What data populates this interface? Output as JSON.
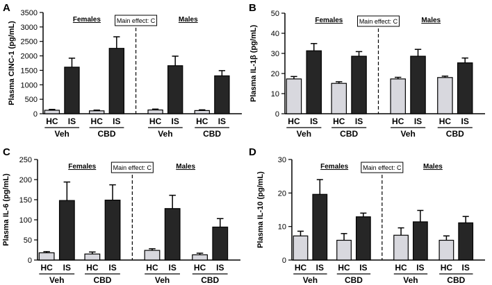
{
  "chart_data": [
    {
      "type": "bar",
      "panel": "A",
      "ylabel": "Plasma CINC-1 (pg/mL)",
      "ylim": [
        0,
        3500
      ],
      "yticks": [
        0,
        500,
        1000,
        1500,
        2000,
        2500,
        3000,
        3500
      ],
      "categories": [
        "HC",
        "IS",
        "HC",
        "IS",
        "HC",
        "IS",
        "HC",
        "IS"
      ],
      "groups": [
        "Veh",
        "CBD",
        "Veh",
        "CBD"
      ],
      "sexes": [
        "Females",
        "Males"
      ],
      "annotation": "Main effect: C",
      "colors": [
        "#d8d8de",
        "#262626",
        "#d8d8de",
        "#262626",
        "#d8d8de",
        "#262626",
        "#d8d8de",
        "#262626"
      ],
      "values": [
        120,
        1610,
        100,
        2260,
        130,
        1660,
        110,
        1310
      ],
      "errors": [
        30,
        310,
        25,
        400,
        30,
        330,
        25,
        180
      ]
    },
    {
      "type": "bar",
      "panel": "B",
      "ylabel": "Plasma IL-1β (pg/mL)",
      "ylim": [
        0,
        50
      ],
      "yticks": [
        0,
        10,
        20,
        30,
        40,
        50
      ],
      "categories": [
        "HC",
        "IS",
        "HC",
        "IS",
        "HC",
        "IS",
        "HC",
        "IS"
      ],
      "groups": [
        "Veh",
        "CBD",
        "Veh",
        "CBD"
      ],
      "sexes": [
        "Females",
        "Males"
      ],
      "annotation": "Main effect: C",
      "colors": [
        "#d8d8de",
        "#262626",
        "#d8d8de",
        "#262626",
        "#d8d8de",
        "#262626",
        "#d8d8de",
        "#262626"
      ],
      "values": [
        17.3,
        31.3,
        15.1,
        28.6,
        17.3,
        28.6,
        18.0,
        25.3
      ],
      "errors": [
        1.2,
        3.6,
        0.8,
        2.3,
        0.8,
        3.4,
        0.7,
        2.4
      ]
    },
    {
      "type": "bar",
      "panel": "C",
      "ylabel": "Plasma IL-6 (pg/mL)",
      "ylim": [
        0,
        250
      ],
      "yticks": [
        0,
        50,
        100,
        150,
        200,
        250
      ],
      "categories": [
        "HC",
        "IS",
        "HC",
        "IS",
        "HC",
        "IS",
        "HC",
        "IS"
      ],
      "groups": [
        "Veh",
        "CBD",
        "Veh",
        "CBD"
      ],
      "sexes": [
        "Females",
        "Males"
      ],
      "annotation": "Main effect: C",
      "colors": [
        "#d8d8de",
        "#262626",
        "#d8d8de",
        "#262626",
        "#d8d8de",
        "#262626",
        "#d8d8de",
        "#262626"
      ],
      "values": [
        18,
        148,
        15,
        149,
        24,
        128,
        13,
        82
      ],
      "errors": [
        3,
        46,
        5,
        38,
        4,
        33,
        4,
        21
      ]
    },
    {
      "type": "bar",
      "panel": "D",
      "ylabel": "Plasma IL-10 (pg/mL)",
      "ylim": [
        0,
        30
      ],
      "yticks": [
        0,
        10,
        20,
        30
      ],
      "categories": [
        "HC",
        "IS",
        "HC",
        "IS",
        "HC",
        "IS",
        "HC",
        "IS"
      ],
      "groups": [
        "Veh",
        "CBD",
        "Veh",
        "CBD"
      ],
      "sexes": [
        "Females",
        "Males"
      ],
      "annotation": "Main effect: C",
      "colors": [
        "#d8d8de",
        "#262626",
        "#d8d8de",
        "#262626",
        "#d8d8de",
        "#262626",
        "#d8d8de",
        "#262626"
      ],
      "values": [
        7.2,
        19.6,
        5.9,
        12.9,
        7.4,
        11.4,
        5.9,
        11.1
      ],
      "errors": [
        1.4,
        4.4,
        2.0,
        1.1,
        2.2,
        3.4,
        1.3,
        1.9
      ]
    }
  ]
}
